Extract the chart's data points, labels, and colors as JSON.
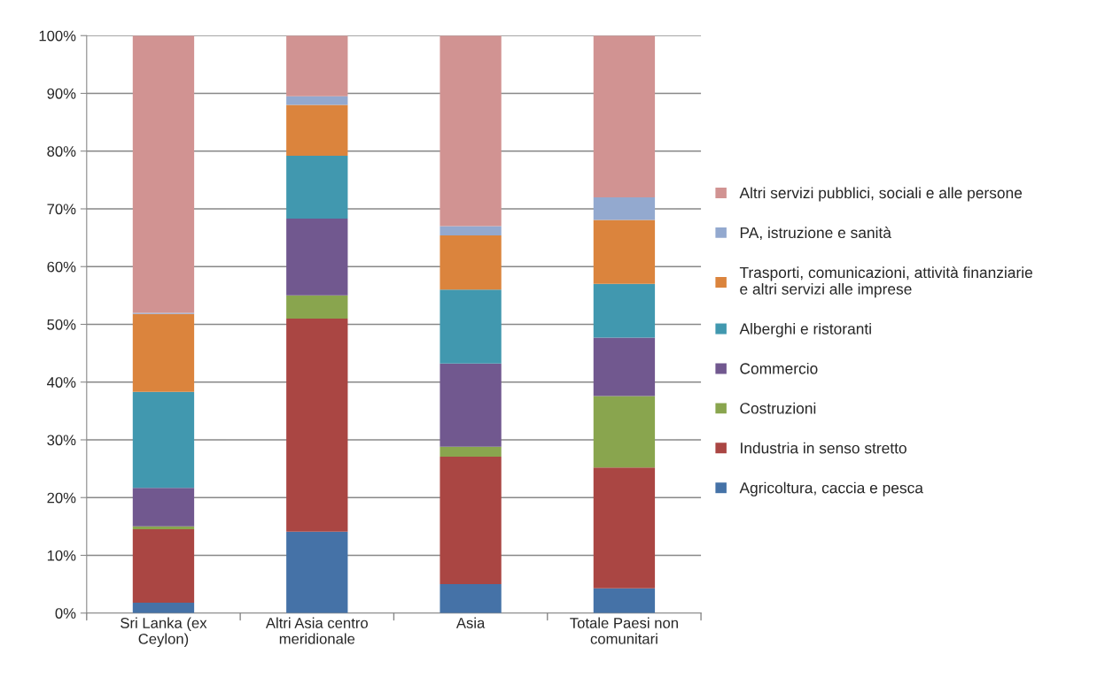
{
  "chart_data": {
    "type": "bar",
    "stacked": true,
    "categories": [
      "Sri Lanka (ex\nCeylon)",
      "Altri Asia centro\nmeridionale",
      "Asia",
      "Totale Paesi non\ncomunitari"
    ],
    "series": [
      {
        "name": "Agricoltura, caccia e pesca",
        "color": "#4572a7",
        "values": [
          1.8,
          14.1,
          5.0,
          4.3
        ]
      },
      {
        "name": "Industria in senso stretto",
        "color": "#aa4643",
        "values": [
          12.7,
          36.9,
          22.1,
          20.9
        ]
      },
      {
        "name": "Costruzioni",
        "color": "#89a54e",
        "values": [
          0.5,
          4.0,
          1.7,
          12.4
        ]
      },
      {
        "name": "Commercio",
        "color": "#71588f",
        "values": [
          6.7,
          13.3,
          14.4,
          10.1
        ]
      },
      {
        "name": "Alberghi e ristoranti",
        "color": "#4198af",
        "values": [
          16.6,
          10.9,
          12.8,
          9.3
        ]
      },
      {
        "name": "Trasporti, comunicazioni, attività finanziarie\ne altri servizi alle imprese",
        "color": "#db843d",
        "values": [
          13.5,
          8.8,
          9.4,
          11.1
        ]
      },
      {
        "name": "PA, istruzione e sanità",
        "color": "#93a9cf",
        "values": [
          0.2,
          1.5,
          1.6,
          3.9
        ]
      },
      {
        "name": "Altri servizi pubblici, sociali e alle persone",
        "color": "#d19392",
        "values": [
          48.0,
          10.5,
          33.0,
          28.0
        ]
      }
    ],
    "ylim": [
      0,
      100
    ],
    "yticks": [
      {
        "value": 0,
        "label": "0%"
      },
      {
        "value": 10,
        "label": "10%"
      },
      {
        "value": 20,
        "label": "20%"
      },
      {
        "value": 30,
        "label": "30%"
      },
      {
        "value": 40,
        "label": "40%"
      },
      {
        "value": 50,
        "label": "50%"
      },
      {
        "value": 60,
        "label": "60%"
      },
      {
        "value": 70,
        "label": "70%"
      },
      {
        "value": 80,
        "label": "80%"
      },
      {
        "value": 90,
        "label": "90%"
      },
      {
        "value": 100,
        "label": "100%"
      }
    ],
    "grid": "y",
    "legend": "right"
  }
}
